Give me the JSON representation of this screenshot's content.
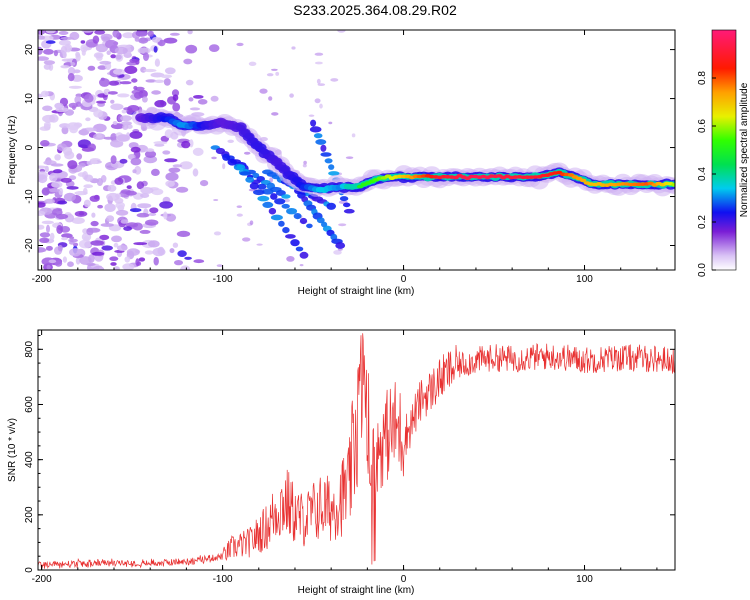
{
  "title": "S233.2025.364.08.29.R02",
  "chart_data": [
    {
      "type": "heatmap",
      "xlabel": "Height of straight line (km)",
      "ylabel": "Frequency (Hz)",
      "xlim": [
        -202,
        150
      ],
      "ylim": [
        -25,
        24
      ],
      "xticks": [
        -200,
        -100,
        0,
        100
      ],
      "xtick_labels": [
        "-200",
        "-100",
        "0",
        "100"
      ],
      "yticks": [
        -20,
        -10,
        0,
        10,
        20
      ],
      "ytick_labels": [
        "-20",
        "-10",
        "0",
        "10",
        "20"
      ],
      "colorbar": {
        "label": "Normalized spectral amplitude",
        "range": [
          0,
          1
        ],
        "ticks": [
          0.0,
          0.2,
          0.4,
          0.6,
          0.8
        ],
        "tick_labels": [
          "0.0",
          "0.2",
          "0.4",
          "0.6",
          "0.8"
        ]
      },
      "ridge": [
        {
          "x": -145,
          "y": 6,
          "v": 0.18
        },
        {
          "x": -130,
          "y": 6,
          "v": 0.25
        },
        {
          "x": -122,
          "y": 4.5,
          "v": 0.32
        },
        {
          "x": -110,
          "y": 4.5,
          "v": 0.22
        },
        {
          "x": -100,
          "y": 5,
          "v": 0.18
        },
        {
          "x": -90,
          "y": 4,
          "v": 0.2
        },
        {
          "x": -80,
          "y": 0,
          "v": 0.22
        },
        {
          "x": -70,
          "y": -3,
          "v": 0.2
        },
        {
          "x": -62,
          "y": -6,
          "v": 0.22
        },
        {
          "x": -55,
          "y": -8,
          "v": 0.25
        },
        {
          "x": -45,
          "y": -8.5,
          "v": 0.35
        },
        {
          "x": -35,
          "y": -8,
          "v": 0.3
        },
        {
          "x": -25,
          "y": -8,
          "v": 0.5
        },
        {
          "x": -15,
          "y": -6.5,
          "v": 0.55
        },
        {
          "x": -5,
          "y": -6,
          "v": 0.65
        },
        {
          "x": 5,
          "y": -6,
          "v": 0.75
        },
        {
          "x": 20,
          "y": -6,
          "v": 0.9
        },
        {
          "x": 40,
          "y": -6,
          "v": 0.95
        },
        {
          "x": 60,
          "y": -6,
          "v": 0.92
        },
        {
          "x": 75,
          "y": -6,
          "v": 0.9
        },
        {
          "x": 85,
          "y": -5,
          "v": 0.85
        },
        {
          "x": 95,
          "y": -6,
          "v": 0.75
        },
        {
          "x": 105,
          "y": -7.5,
          "v": 0.7
        },
        {
          "x": 120,
          "y": -7.5,
          "v": 0.75
        },
        {
          "x": 135,
          "y": -7.5,
          "v": 0.8
        },
        {
          "x": 150,
          "y": -7.5,
          "v": 0.6
        }
      ]
    },
    {
      "type": "line",
      "xlabel": "Height of straight line (km)",
      "ylabel": "SNR (10 * v/v)",
      "xlim": [
        -202,
        150
      ],
      "ylim": [
        0,
        870
      ],
      "xticks": [
        -200,
        -100,
        0,
        100
      ],
      "xtick_labels": [
        "-200",
        "-100",
        "0",
        "100"
      ],
      "yticks": [
        0,
        200,
        400,
        600,
        800
      ],
      "ytick_labels": [
        "0",
        "200",
        "400",
        "600",
        "800"
      ],
      "series": [
        {
          "name": "SNR",
          "color": "#e83030",
          "x": [
            -202,
            -180,
            -160,
            -140,
            -120,
            -100,
            -95,
            -85,
            -75,
            -70,
            -65,
            -60,
            -55,
            -50,
            -45,
            -40,
            -35,
            -30,
            -25,
            -22,
            -20,
            -18,
            -15,
            -12,
            -10,
            -8,
            -5,
            -2,
            0,
            3,
            6,
            10,
            15,
            20,
            25,
            30,
            40,
            50,
            60,
            70,
            80,
            90,
            100,
            110,
            120,
            130,
            140,
            150
          ],
          "y": [
            20,
            22,
            25,
            25,
            30,
            50,
            80,
            100,
            160,
            220,
            250,
            200,
            180,
            210,
            230,
            220,
            260,
            300,
            600,
            720,
            350,
            380,
            420,
            460,
            480,
            500,
            520,
            500,
            480,
            510,
            560,
            620,
            650,
            690,
            720,
            740,
            760,
            770,
            765,
            770,
            775,
            770,
            760,
            765,
            770,
            768,
            765,
            760
          ]
        }
      ]
    }
  ]
}
